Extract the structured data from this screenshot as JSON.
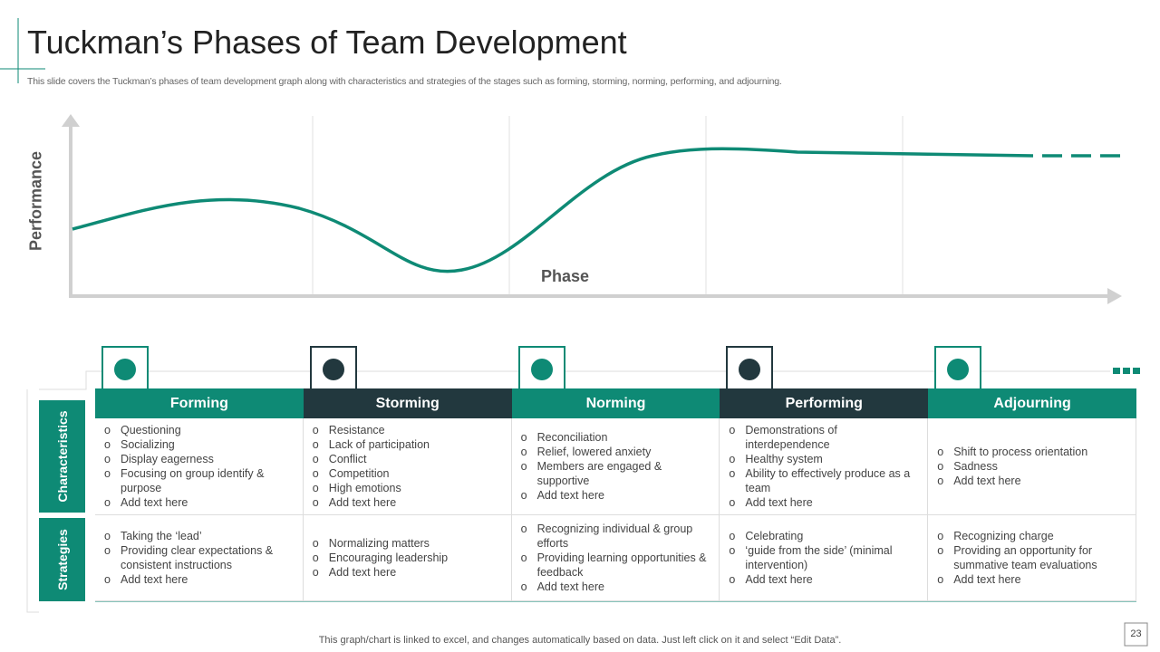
{
  "header": {
    "title": "Tuckman’s Phases of Team Development",
    "subtitle": "This slide covers the Tuckman’s phases of team development graph along with characteristics and strategies of the stages such as forming, storming, norming, performing, and adjourning."
  },
  "graph": {
    "y_label": "Performance",
    "x_label": "Phase"
  },
  "table": {
    "row_headers": [
      "Characteristics",
      "Strategies"
    ],
    "columns": [
      {
        "name": "Forming",
        "characteristics": [
          "Questioning",
          "Socializing",
          "Display eagerness",
          "Focusing on group identify & purpose",
          "Add text here"
        ],
        "strategies": [
          "Taking the ‘lead’",
          "Providing clear expectations & consistent instructions",
          "Add text here"
        ]
      },
      {
        "name": "Storming",
        "characteristics": [
          "Resistance",
          "Lack of participation",
          "Conflict",
          "Competition",
          "High emotions",
          "Add text here"
        ],
        "strategies": [
          "Normalizing matters",
          "Encouraging leadership",
          "Add text here"
        ]
      },
      {
        "name": "Norming",
        "characteristics": [
          "Reconciliation",
          "Relief, lowered anxiety",
          "Members are engaged & supportive",
          "Add text here"
        ],
        "strategies": [
          "Recognizing individual & group efforts",
          "Providing learning opportunities & feedback",
          "Add text here"
        ]
      },
      {
        "name": "Performing",
        "characteristics": [
          "Demonstrations of interdependence",
          "Healthy system",
          "Ability to effectively produce as a team",
          "Add text here"
        ],
        "strategies": [
          "Celebrating",
          "‘guide from the side’ (minimal intervention)",
          "Add text here"
        ]
      },
      {
        "name": "Adjourning",
        "characteristics": [
          "Shift to process orientation",
          "Sadness",
          "Add text here"
        ],
        "strategies": [
          "Recognizing charge",
          "Providing an opportunity for summative team evaluations",
          "Add text here"
        ]
      }
    ]
  },
  "footer": {
    "note": "This graph/chart is linked to excel, and changes automatically based on data. Just left click on it and select “Edit Data”.",
    "page": "23"
  }
}
